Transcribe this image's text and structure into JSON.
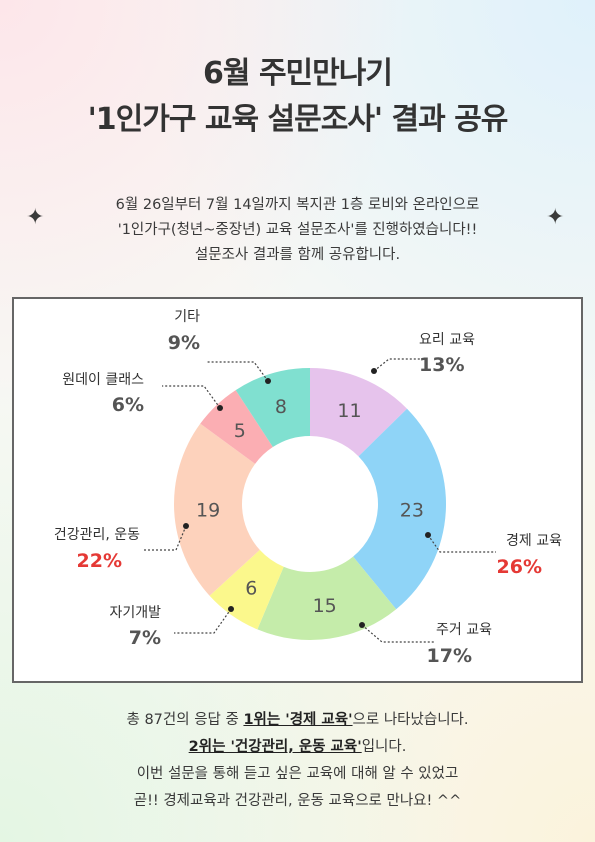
{
  "title": {
    "line1": "6월 주민만나기",
    "line2": "'1인가구 교육 설문조사' 결과 공유"
  },
  "intro": {
    "line1": "6월 26일부터 7월 14일까지 복지관 1층 로비와 온라인으로",
    "line2": "'1인가구(청년~중장년) 교육 설문조사'를 진행하였습니다!!",
    "line3": "설문조사 결과를 함께 공유합니다."
  },
  "chart_data": {
    "type": "pie",
    "style": "donut",
    "total": 87,
    "slices": [
      {
        "name": "요리 교육",
        "value": 11,
        "percent": "13%",
        "color": "#e6c3ec",
        "highlight": false
      },
      {
        "name": "경제 교육",
        "value": 23,
        "percent": "26%",
        "color": "#8fd4f7",
        "highlight": true
      },
      {
        "name": "주거 교육",
        "value": 15,
        "percent": "17%",
        "color": "#c5ecaa",
        "highlight": false
      },
      {
        "name": "자기개발",
        "value": 6,
        "percent": "7%",
        "color": "#fbf88c",
        "highlight": false
      },
      {
        "name": "건강관리, 운동",
        "value": 19,
        "percent": "22%",
        "color": "#fdd2bc",
        "highlight": true
      },
      {
        "name": "원데이 클래스",
        "value": 5,
        "percent": "6%",
        "color": "#fbaeb3",
        "highlight": false
      },
      {
        "name": "기타",
        "value": 8,
        "percent": "9%",
        "color": "#80e0d0",
        "highlight": false
      }
    ],
    "label_color": "#555555",
    "highlight_color": "#e53935",
    "percent_color": "#555555"
  },
  "summary": {
    "line1_pre": "총 87건의 응답 중 ",
    "line1_bold": "1위는 '경제 교육'",
    "line1_post": "으로 나타났습니다.",
    "line2_bold": "2위는 '건강관리, 운동 교육'",
    "line2_post": "입니다.",
    "line3": "이번 설문을 통해 듣고 싶은 교육에 대해 알 수 있었고",
    "line4": "곧!! 경제교육과 건강관리, 운동 교육으로 만나요! ^^"
  }
}
